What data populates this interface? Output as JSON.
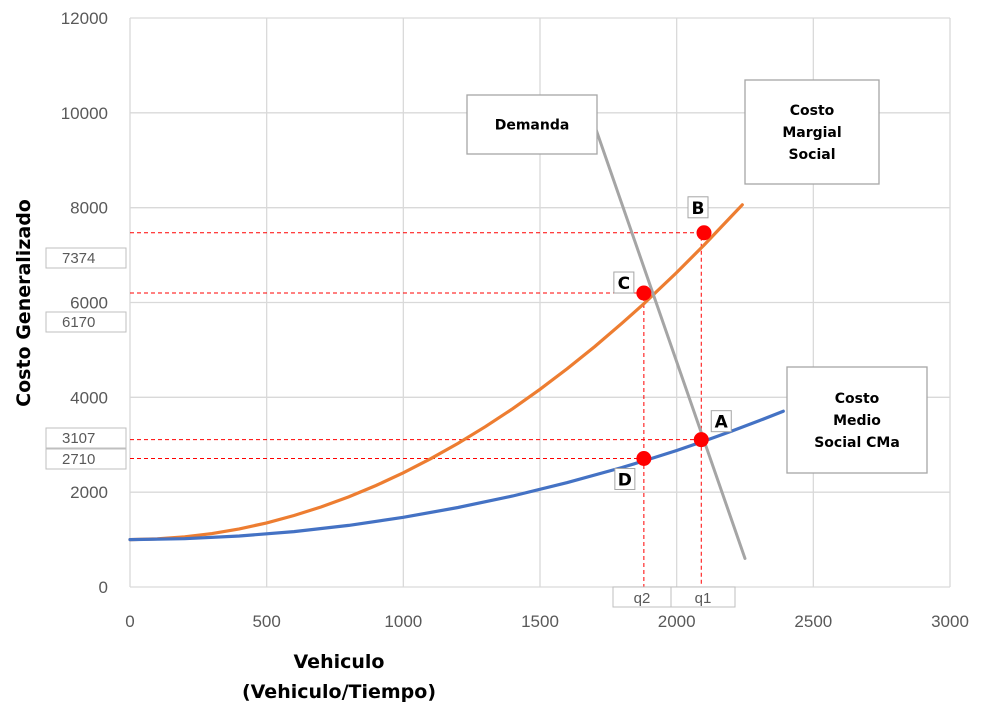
{
  "chart_data": {
    "type": "line",
    "title": "",
    "xlabel": [
      "Vehiculo",
      "(Vehiculo/Tiempo)"
    ],
    "ylabel": "Costo Generalizado",
    "xlim": [
      0,
      3000
    ],
    "ylim": [
      0,
      12000
    ],
    "x_ticks": [
      0,
      500,
      1000,
      1500,
      2000,
      2500,
      3000
    ],
    "y_ticks": [
      0,
      2000,
      4000,
      6000,
      8000,
      10000,
      12000
    ],
    "grid": true,
    "colors": {
      "cms": "#ED7D31",
      "cma": "#4472C4",
      "demand": "#A5A5A5",
      "point": "#FF0000",
      "guide": "#FF0000"
    },
    "series": [
      {
        "name": "Costo Margial Social",
        "key": "cms",
        "x": [
          0,
          100,
          200,
          300,
          400,
          500,
          600,
          700,
          800,
          900,
          1000,
          1100,
          1200,
          1300,
          1400,
          1500,
          1600,
          1700,
          1800,
          1880,
          1900,
          2000,
          2100,
          2200,
          2240
        ],
        "y": [
          1000,
          1014,
          1056,
          1127,
          1225,
          1352,
          1507,
          1690,
          1901,
          2141,
          2409,
          2705,
          3028,
          3380,
          3761,
          4169,
          4606,
          5071,
          5563,
          5975,
          6084,
          6633,
          7210,
          7815,
          8060
        ]
      },
      {
        "name": "Costo Medio Social CMa",
        "key": "cma",
        "x": [
          0,
          200,
          400,
          600,
          800,
          1000,
          1200,
          1400,
          1600,
          1800,
          1880,
          2000,
          2100,
          2200,
          2300,
          2390
        ],
        "y": [
          1000,
          1019,
          1075,
          1169,
          1300,
          1470,
          1676,
          1920,
          2201,
          2521,
          2660,
          2878,
          3076,
          3285,
          3503,
          3708
        ]
      },
      {
        "name": "Demanda",
        "key": "demand",
        "x": [
          1690,
          2250
        ],
        "y": [
          9900,
          600
        ]
      }
    ],
    "points": [
      {
        "label": "A",
        "x": 2090,
        "y": 3107
      },
      {
        "label": "B",
        "x": 2100,
        "y": 7470
      },
      {
        "label": "C",
        "x": 1880,
        "y": 6200
      },
      {
        "label": "D",
        "x": 1880,
        "y": 2710
      }
    ],
    "guide_levels": [
      {
        "label": "7374",
        "y": 7374
      },
      {
        "label": "6170",
        "y": 6170
      },
      {
        "label": "3107",
        "y": 3107
      },
      {
        "label": "2710",
        "y": 2710
      }
    ],
    "guide_quantities": [
      {
        "label": "q2",
        "x": 1880
      },
      {
        "label": "q1",
        "x": 2090
      }
    ],
    "annotations": [
      {
        "key": "demanda",
        "lines": [
          "Demanda"
        ]
      },
      {
        "key": "cms",
        "lines": [
          "Costo",
          "Margial",
          "Social"
        ]
      },
      {
        "key": "cma",
        "lines": [
          "Costo",
          "Medio",
          "Social CMa"
        ]
      }
    ]
  }
}
